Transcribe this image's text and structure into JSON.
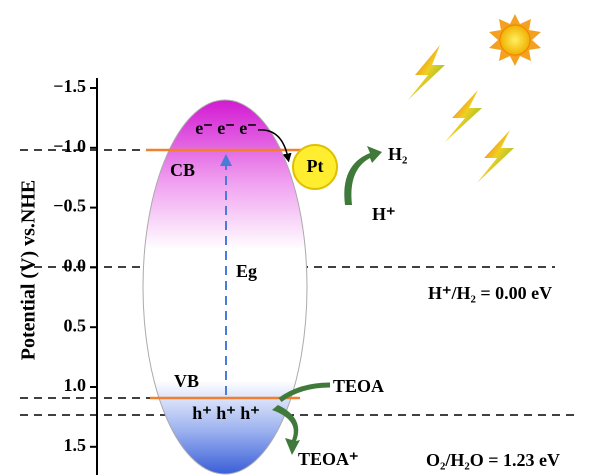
{
  "axis": {
    "label": "Potential (V) vs.NHE",
    "ticks": [
      "−1.5",
      "−1.0",
      "−0.5",
      "0.0",
      "0.5",
      "1.0",
      "1.5"
    ]
  },
  "labels": {
    "electrons": "e⁻ e⁻ e⁻",
    "cb": "CB",
    "pt": "Pt",
    "h2": "H₂",
    "h_plus": "H⁺",
    "eg": "Eg",
    "h_couple": "H⁺/H₂ = 0.00 eV",
    "vb": "VB",
    "holes": "h⁺ h⁺ h⁺",
    "teoa": "TEOA",
    "teoa_plus": "TEOA⁺",
    "o_couple": "O₂/H₂O = 1.23 eV"
  }
}
